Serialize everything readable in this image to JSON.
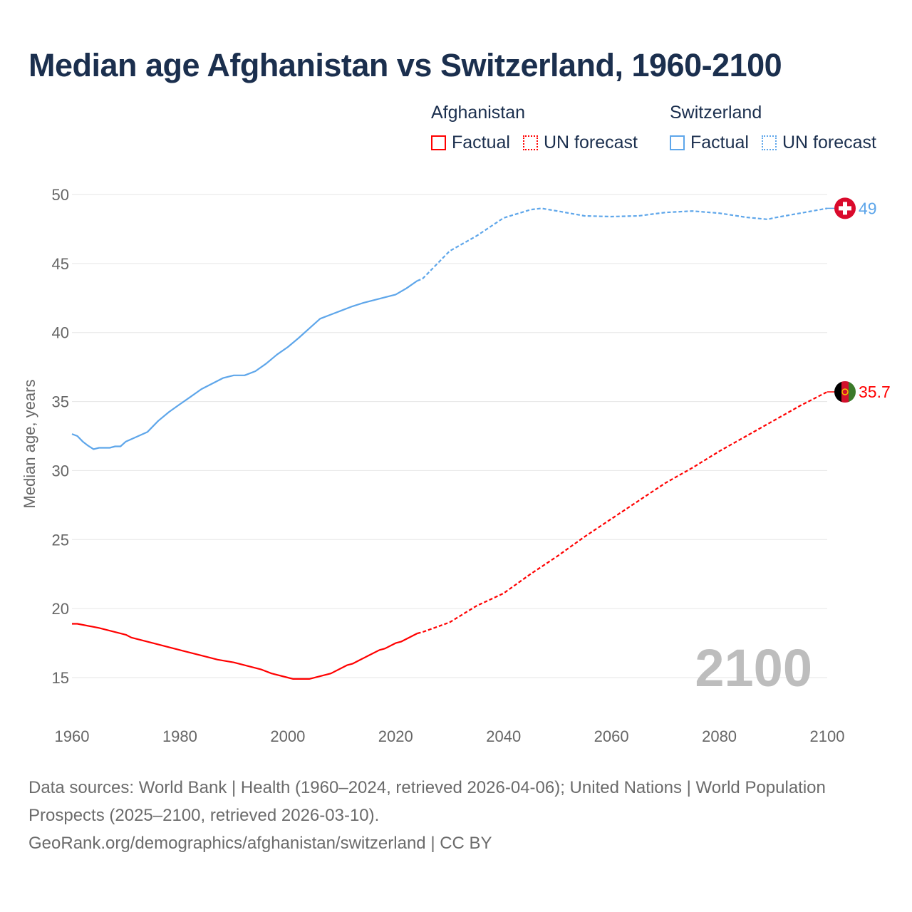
{
  "title": "Median age Afghanistan vs Switzerland, 1960-2100",
  "legend": {
    "groups": [
      {
        "name": "Afghanistan",
        "color": "#ff0000",
        "factual": "Factual",
        "forecast": "UN forecast"
      },
      {
        "name": "Switzerland",
        "color": "#5ea6ea",
        "factual": "Factual",
        "forecast": "UN forecast"
      }
    ]
  },
  "year_watermark": "2100",
  "footer": {
    "line1": "Data sources: World Bank | Health (1960–2024, retrieved 2026-04-06); United Nations | World Population Prospects (2025–2100, retrieved 2026-03-10).",
    "line2": "GeoRank.org/demographics/afghanistan/switzerland | CC BY"
  },
  "chart_data": {
    "type": "line",
    "title": "Median age Afghanistan vs Switzerland, 1960-2100",
    "xlabel": "",
    "ylabel": "Median age, years",
    "xlim": [
      1960,
      2100
    ],
    "ylim": [
      15,
      50
    ],
    "xticks": [
      "1960",
      "1980",
      "2000",
      "2020",
      "2040",
      "2060",
      "2080",
      "2100"
    ],
    "yticks": [
      "15",
      "20",
      "25",
      "30",
      "35",
      "40",
      "45",
      "50"
    ],
    "grid": true,
    "legend_position": "top-right",
    "series": [
      {
        "name": "Afghanistan",
        "color": "#ff0000",
        "end_label": "35.7",
        "flag": "afghanistan-flag",
        "factual": {
          "x": [
            1960,
            1961,
            1965,
            1970,
            1971,
            1975,
            1978,
            1980,
            1985,
            1987,
            1990,
            1995,
            1997,
            2000,
            2001,
            2004,
            2008,
            2011,
            2012,
            2015,
            2017,
            2018,
            2020,
            2021,
            2024
          ],
          "y": [
            18.9,
            18.9,
            18.6,
            18.1,
            17.9,
            17.5,
            17.2,
            17.0,
            16.5,
            16.3,
            16.1,
            15.6,
            15.3,
            15.0,
            14.9,
            14.9,
            15.3,
            15.9,
            16.0,
            16.6,
            17.0,
            17.1,
            17.5,
            17.6,
            18.2
          ]
        },
        "forecast": {
          "x": [
            2024,
            2025,
            2030,
            2035,
            2040,
            2045,
            2050,
            2055,
            2060,
            2065,
            2070,
            2075,
            2080,
            2085,
            2090,
            2095,
            2100
          ],
          "y": [
            18.2,
            18.3,
            19.0,
            20.2,
            21.1,
            22.5,
            23.8,
            25.2,
            26.5,
            27.8,
            29.1,
            30.2,
            31.4,
            32.5,
            33.6,
            34.7,
            35.7
          ]
        }
      },
      {
        "name": "Switzerland",
        "color": "#5ea6ea",
        "end_label": "49",
        "flag": "switzerland-flag",
        "factual": {
          "x": [
            1960,
            1961,
            1962,
            1963,
            1964,
            1965,
            1966,
            1967,
            1968,
            1969,
            1970,
            1972,
            1974,
            1976,
            1978,
            1980,
            1982,
            1984,
            1986,
            1988,
            1990,
            1992,
            1994,
            1996,
            1998,
            2000,
            2002,
            2004,
            2006,
            2008,
            2010,
            2012,
            2014,
            2016,
            2018,
            2020,
            2022,
            2024
          ],
          "y": [
            32.65,
            32.5,
            32.1,
            31.8,
            31.55,
            31.65,
            31.65,
            31.65,
            31.75,
            31.75,
            32.1,
            32.45,
            32.8,
            33.6,
            34.25,
            34.8,
            35.35,
            35.9,
            36.3,
            36.7,
            36.9,
            36.9,
            37.2,
            37.75,
            38.4,
            38.95,
            39.6,
            40.3,
            41.0,
            41.3,
            41.6,
            41.9,
            42.15,
            42.35,
            42.55,
            42.75,
            43.2,
            43.75
          ]
        },
        "forecast": {
          "x": [
            2024,
            2025,
            2030,
            2035,
            2040,
            2045,
            2047,
            2050,
            2055,
            2060,
            2065,
            2070,
            2075,
            2080,
            2085,
            2089,
            2090,
            2095,
            2100
          ],
          "y": [
            43.75,
            43.9,
            45.9,
            47.0,
            48.3,
            48.9,
            49.0,
            48.8,
            48.45,
            48.4,
            48.45,
            48.7,
            48.8,
            48.65,
            48.35,
            48.2,
            48.3,
            48.65,
            49.0
          ]
        }
      }
    ]
  }
}
